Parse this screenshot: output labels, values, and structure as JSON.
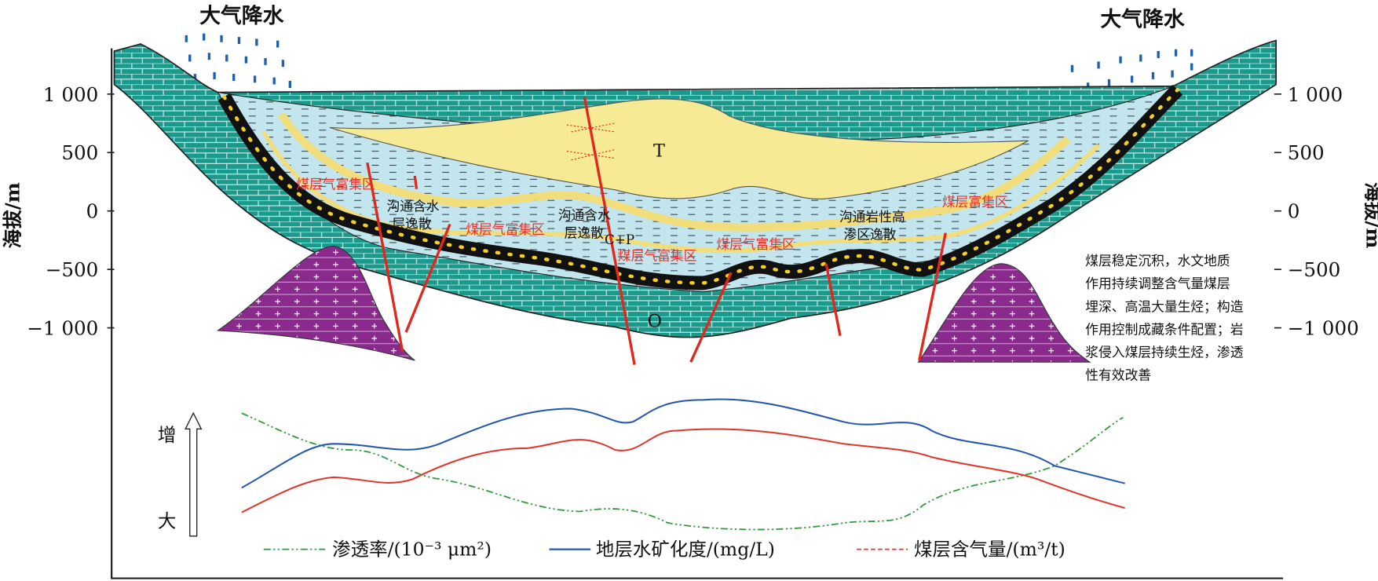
{
  "rain_label": "大气降水",
  "elevation_axis": {
    "title": "海拔/m",
    "ticks": [
      "1 000",
      "500",
      "0",
      "−500",
      "−1 000"
    ]
  },
  "strata": {
    "top": "T",
    "middle": "C+P",
    "bottom": "O"
  },
  "zone_labels": [
    "煤层气富集区",
    "煤层气富集区",
    "煤层气富集区",
    "煤层气富集区",
    "煤层富集区"
  ],
  "escape_labels": [
    [
      "沟通含水",
      "层逸散"
    ],
    [
      "沟通含水",
      "层逸散"
    ],
    [
      "沟通岩性高",
      "渗区逸散"
    ]
  ],
  "description": [
    "煤层稳定沉积，水文地质",
    "作用持续调整含气量煤层",
    "埋深、高温大量生烃；构造",
    "作用控制成藏条件配置；岩",
    "浆侵入煤层持续生烃，渗透",
    "性有效改善"
  ],
  "trend_axis": {
    "top": "增",
    "bottom": "大"
  },
  "legend": [
    "渗透率/(10⁻³ μm²)",
    "地层水矿化度/(mg/L)",
    "煤层含气量/(m³/t)"
  ]
}
